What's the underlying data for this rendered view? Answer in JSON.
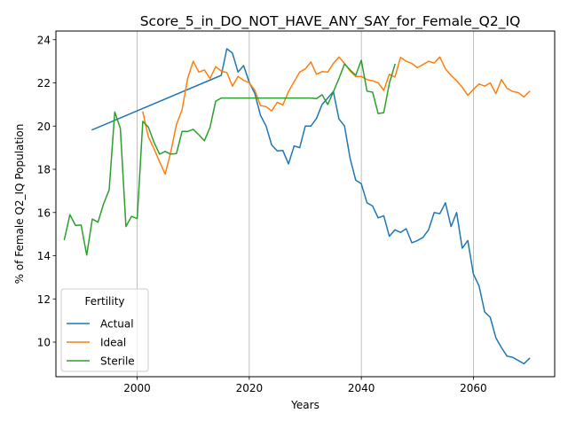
{
  "colors": {
    "Actual": "#1f77b4",
    "Ideal": "#ff7f0e",
    "Sterile": "#2ca02c",
    "grid": "#b0b0b0",
    "axis": "#000000",
    "legend_border": "#cccccc"
  },
  "chart_data": {
    "type": "line",
    "title": "Score_5_in_DO_NOT_HAVE_ANY_SAY_for_Female_Q2_IQ",
    "xlabel": "Years",
    "ylabel": "% of Female Q2_IQ Population",
    "xlim": [
      1985.5,
      2074.5
    ],
    "ylim": [
      8.4,
      24.4
    ],
    "xticks": [
      2000,
      2020,
      2040,
      2060
    ],
    "yticks": [
      10,
      12,
      14,
      16,
      18,
      20,
      22,
      24
    ],
    "grid": "vertical",
    "legend": {
      "title": "Fertility",
      "placement": "lower left"
    },
    "series": [
      {
        "name": "Actual",
        "x": [
          1992,
          2015,
          2016,
          2017,
          2018,
          2019,
          2020,
          2021,
          2022,
          2023,
          2024,
          2025,
          2026,
          2027,
          2028,
          2029,
          2030,
          2031,
          2032,
          2033,
          2034,
          2035,
          2036,
          2037,
          2038,
          2039,
          2040,
          2041,
          2042,
          2043,
          2044,
          2045,
          2046,
          2047,
          2048,
          2049,
          2050,
          2051,
          2052,
          2053,
          2054,
          2055,
          2056,
          2057,
          2058,
          2059,
          2060,
          2061,
          2062,
          2063,
          2064,
          2065,
          2066,
          2067,
          2068,
          2069,
          2070
        ],
        "y": [
          19.83,
          22.35,
          23.58,
          23.38,
          22.5,
          22.8,
          22.02,
          21.5,
          20.5,
          20.0,
          19.13,
          18.85,
          18.87,
          18.25,
          19.08,
          19.0,
          20.0,
          20.0,
          20.35,
          21.0,
          21.3,
          21.6,
          20.33,
          20.0,
          18.5,
          17.5,
          17.33,
          16.45,
          16.3,
          15.75,
          15.85,
          14.9,
          15.2,
          15.08,
          15.25,
          14.6,
          14.7,
          14.85,
          15.2,
          16.0,
          15.95,
          16.45,
          15.35,
          16.0,
          14.35,
          14.7,
          13.15,
          12.6,
          11.4,
          11.15,
          10.2,
          9.75,
          9.35,
          9.3,
          9.15,
          9.0,
          9.25
        ]
      },
      {
        "name": "Ideal",
        "x": [
          2001,
          2002,
          2003,
          2004,
          2005,
          2006,
          2007,
          2008,
          2009,
          2010,
          2011,
          2012,
          2013,
          2014,
          2015,
          2016,
          2017,
          2018,
          2019,
          2020,
          2021,
          2022,
          2023,
          2024,
          2025,
          2026,
          2027,
          2028,
          2029,
          2030,
          2031,
          2032,
          2033,
          2034,
          2035,
          2036,
          2037,
          2038,
          2039,
          2040,
          2041,
          2042,
          2043,
          2044,
          2045,
          2046,
          2047,
          2048,
          2049,
          2050,
          2051,
          2052,
          2053,
          2054,
          2055,
          2056,
          2057,
          2058,
          2059,
          2060,
          2061,
          2062,
          2063,
          2064,
          2065,
          2066,
          2067,
          2068,
          2069,
          2070
        ],
        "y": [
          20.65,
          19.5,
          18.95,
          18.35,
          17.78,
          18.8,
          20.07,
          20.75,
          22.2,
          23.0,
          22.5,
          22.6,
          22.2,
          22.75,
          22.55,
          22.47,
          21.85,
          22.3,
          22.12,
          22.0,
          21.65,
          20.95,
          20.9,
          20.7,
          21.1,
          20.98,
          21.6,
          22.05,
          22.5,
          22.65,
          22.97,
          22.4,
          22.52,
          22.5,
          22.9,
          23.2,
          22.9,
          22.55,
          22.3,
          22.3,
          22.15,
          22.1,
          22.0,
          21.65,
          22.4,
          22.27,
          23.18,
          23.0,
          22.9,
          22.7,
          22.85,
          23.0,
          22.92,
          23.2,
          22.65,
          22.35,
          22.1,
          21.8,
          21.42,
          21.7,
          21.95,
          21.85,
          22.0,
          21.5,
          22.15,
          21.75,
          21.6,
          21.55,
          21.35,
          21.6
        ]
      },
      {
        "name": "Sterile",
        "x": [
          1987,
          1988,
          1989,
          1990,
          1991,
          1992,
          1993,
          1994,
          1995,
          1996,
          1997,
          1998,
          1999,
          2000,
          2001,
          2002,
          2003,
          2004,
          2005,
          2006,
          2007,
          2008,
          2009,
          2010,
          2011,
          2012,
          2013,
          2014,
          2015,
          2016,
          2017,
          2018,
          2019,
          2020,
          2021,
          2022,
          2023,
          2024,
          2025,
          2026,
          2027,
          2028,
          2029,
          2030,
          2031,
          2032,
          2033,
          2034,
          2035,
          2036,
          2037,
          2038,
          2039,
          2040,
          2041,
          2042,
          2043,
          2044,
          2045,
          2046
        ],
        "y": [
          14.75,
          15.9,
          15.4,
          15.42,
          14.03,
          15.7,
          15.55,
          16.4,
          17.05,
          20.65,
          19.9,
          15.35,
          15.82,
          15.72,
          20.22,
          19.95,
          19.25,
          18.7,
          18.83,
          18.7,
          18.73,
          19.75,
          19.75,
          19.85,
          19.6,
          19.32,
          19.95,
          21.15,
          21.3,
          21.3,
          21.3,
          21.3,
          21.3,
          21.3,
          21.3,
          21.3,
          21.3,
          21.3,
          21.3,
          21.3,
          21.3,
          21.3,
          21.3,
          21.3,
          21.3,
          21.27,
          21.45,
          21.0,
          21.58,
          22.2,
          22.88,
          22.6,
          22.35,
          23.05,
          21.62,
          21.57,
          20.58,
          20.62,
          21.98,
          22.85
        ]
      }
    ]
  }
}
